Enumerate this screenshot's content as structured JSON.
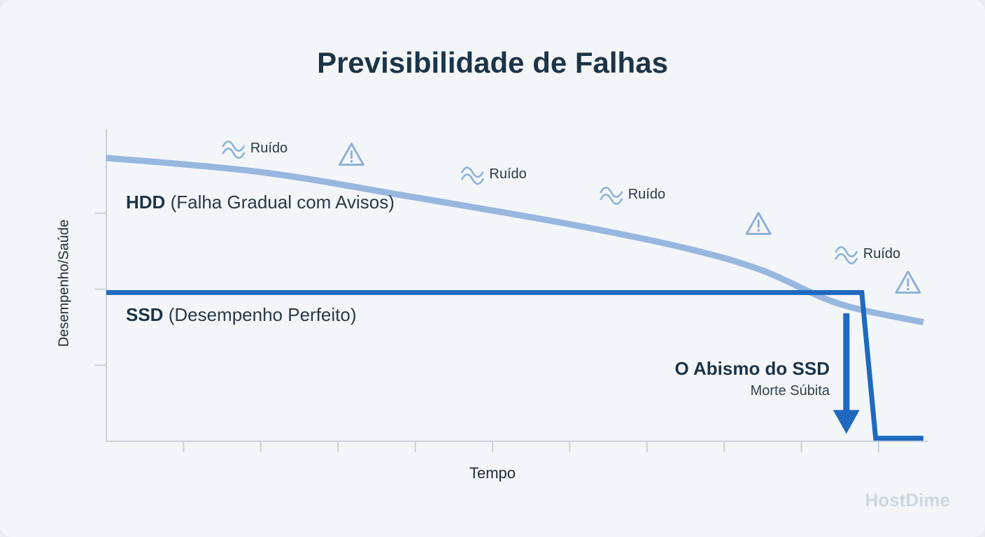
{
  "chart_data": {
    "type": "line",
    "title": "Previsibilidade de Falhas",
    "xlabel": "Tempo",
    "ylabel": "Desempenho/Saúde",
    "grid": false,
    "x_ticks": 10,
    "y_ticks": 4,
    "xlim": [
      0,
      10.6
    ],
    "ylim": [
      0,
      4.1
    ],
    "series": [
      {
        "name": "HDD",
        "label_bold": "HDD",
        "label_rest": " (Falha Gradual com Avisos)",
        "color": "#97b7df",
        "x": [
          0,
          2,
          4,
          6,
          7.5,
          8.5,
          9.5,
          10.6
        ],
        "y": [
          3.81,
          3.62,
          3.28,
          2.92,
          2.6,
          2.3,
          1.85,
          1.6
        ]
      },
      {
        "name": "SSD",
        "label_bold": "SSD",
        "label_rest": " (Desempenho Perfeito)",
        "color": "#1f69bf",
        "x": [
          0,
          9.8,
          9.98,
          10.6
        ],
        "y": [
          2.0,
          2.0,
          0.04,
          0.04
        ]
      }
    ],
    "annotations": {
      "noise_text": "Ruído",
      "noise_points": [
        {
          "x": 1.65,
          "y": 3.93
        },
        {
          "x": 4.75,
          "y": 3.58
        },
        {
          "x": 6.55,
          "y": 3.31
        },
        {
          "x": 9.6,
          "y": 2.51
        }
      ],
      "warning_points": [
        {
          "x": 3.18,
          "y": 3.85
        },
        {
          "x": 8.46,
          "y": 2.92
        },
        {
          "x": 10.4,
          "y": 2.13
        }
      ],
      "cliff": {
        "title": "O Abismo do SSD",
        "subtitle": "Morte Súbita",
        "arrow_x": 9.6,
        "arrow_from_y": 1.72,
        "arrow_to_y": 0.1
      }
    }
  },
  "brand": "HostDime",
  "icons": {
    "noise": "wave-icon",
    "warning": "warning-triangle-icon",
    "arrow": "arrow-down-icon"
  }
}
